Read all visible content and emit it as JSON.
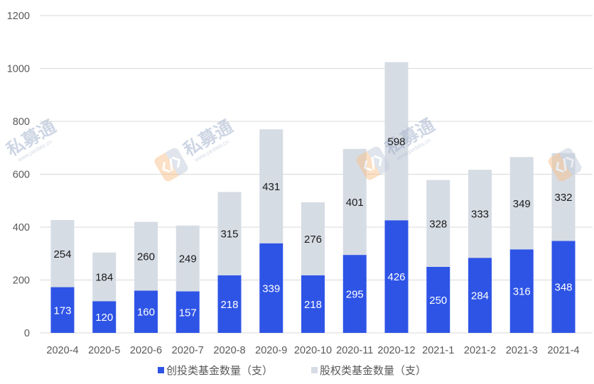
{
  "chart_data": {
    "type": "bar",
    "stacked": true,
    "categories": [
      "2020-4",
      "2020-5",
      "2020-6",
      "2020-7",
      "2020-8",
      "2020-9",
      "2020-10",
      "2020-11",
      "2020-12",
      "2021-1",
      "2021-2",
      "2021-3",
      "2021-4"
    ],
    "series": [
      {
        "name": "创投类基金数量（支）",
        "color": "#2E54E6",
        "label_color": "#FFFFFF",
        "values": [
          173,
          120,
          160,
          157,
          218,
          339,
          218,
          295,
          426,
          250,
          284,
          316,
          348
        ]
      },
      {
        "name": "股权类基金数量（支）",
        "color": "#D6DCE4",
        "label_color": "#1A1A1A",
        "values": [
          254,
          184,
          260,
          249,
          315,
          431,
          276,
          401,
          598,
          328,
          333,
          349,
          332
        ]
      }
    ],
    "ylim": [
      0,
      1200
    ],
    "yticks": [
      0,
      200,
      400,
      600,
      800,
      1000,
      1200
    ],
    "grid": true,
    "legend": "bottom"
  },
  "watermark": {
    "brand": "私募通",
    "url": "www.pedata.cn"
  }
}
